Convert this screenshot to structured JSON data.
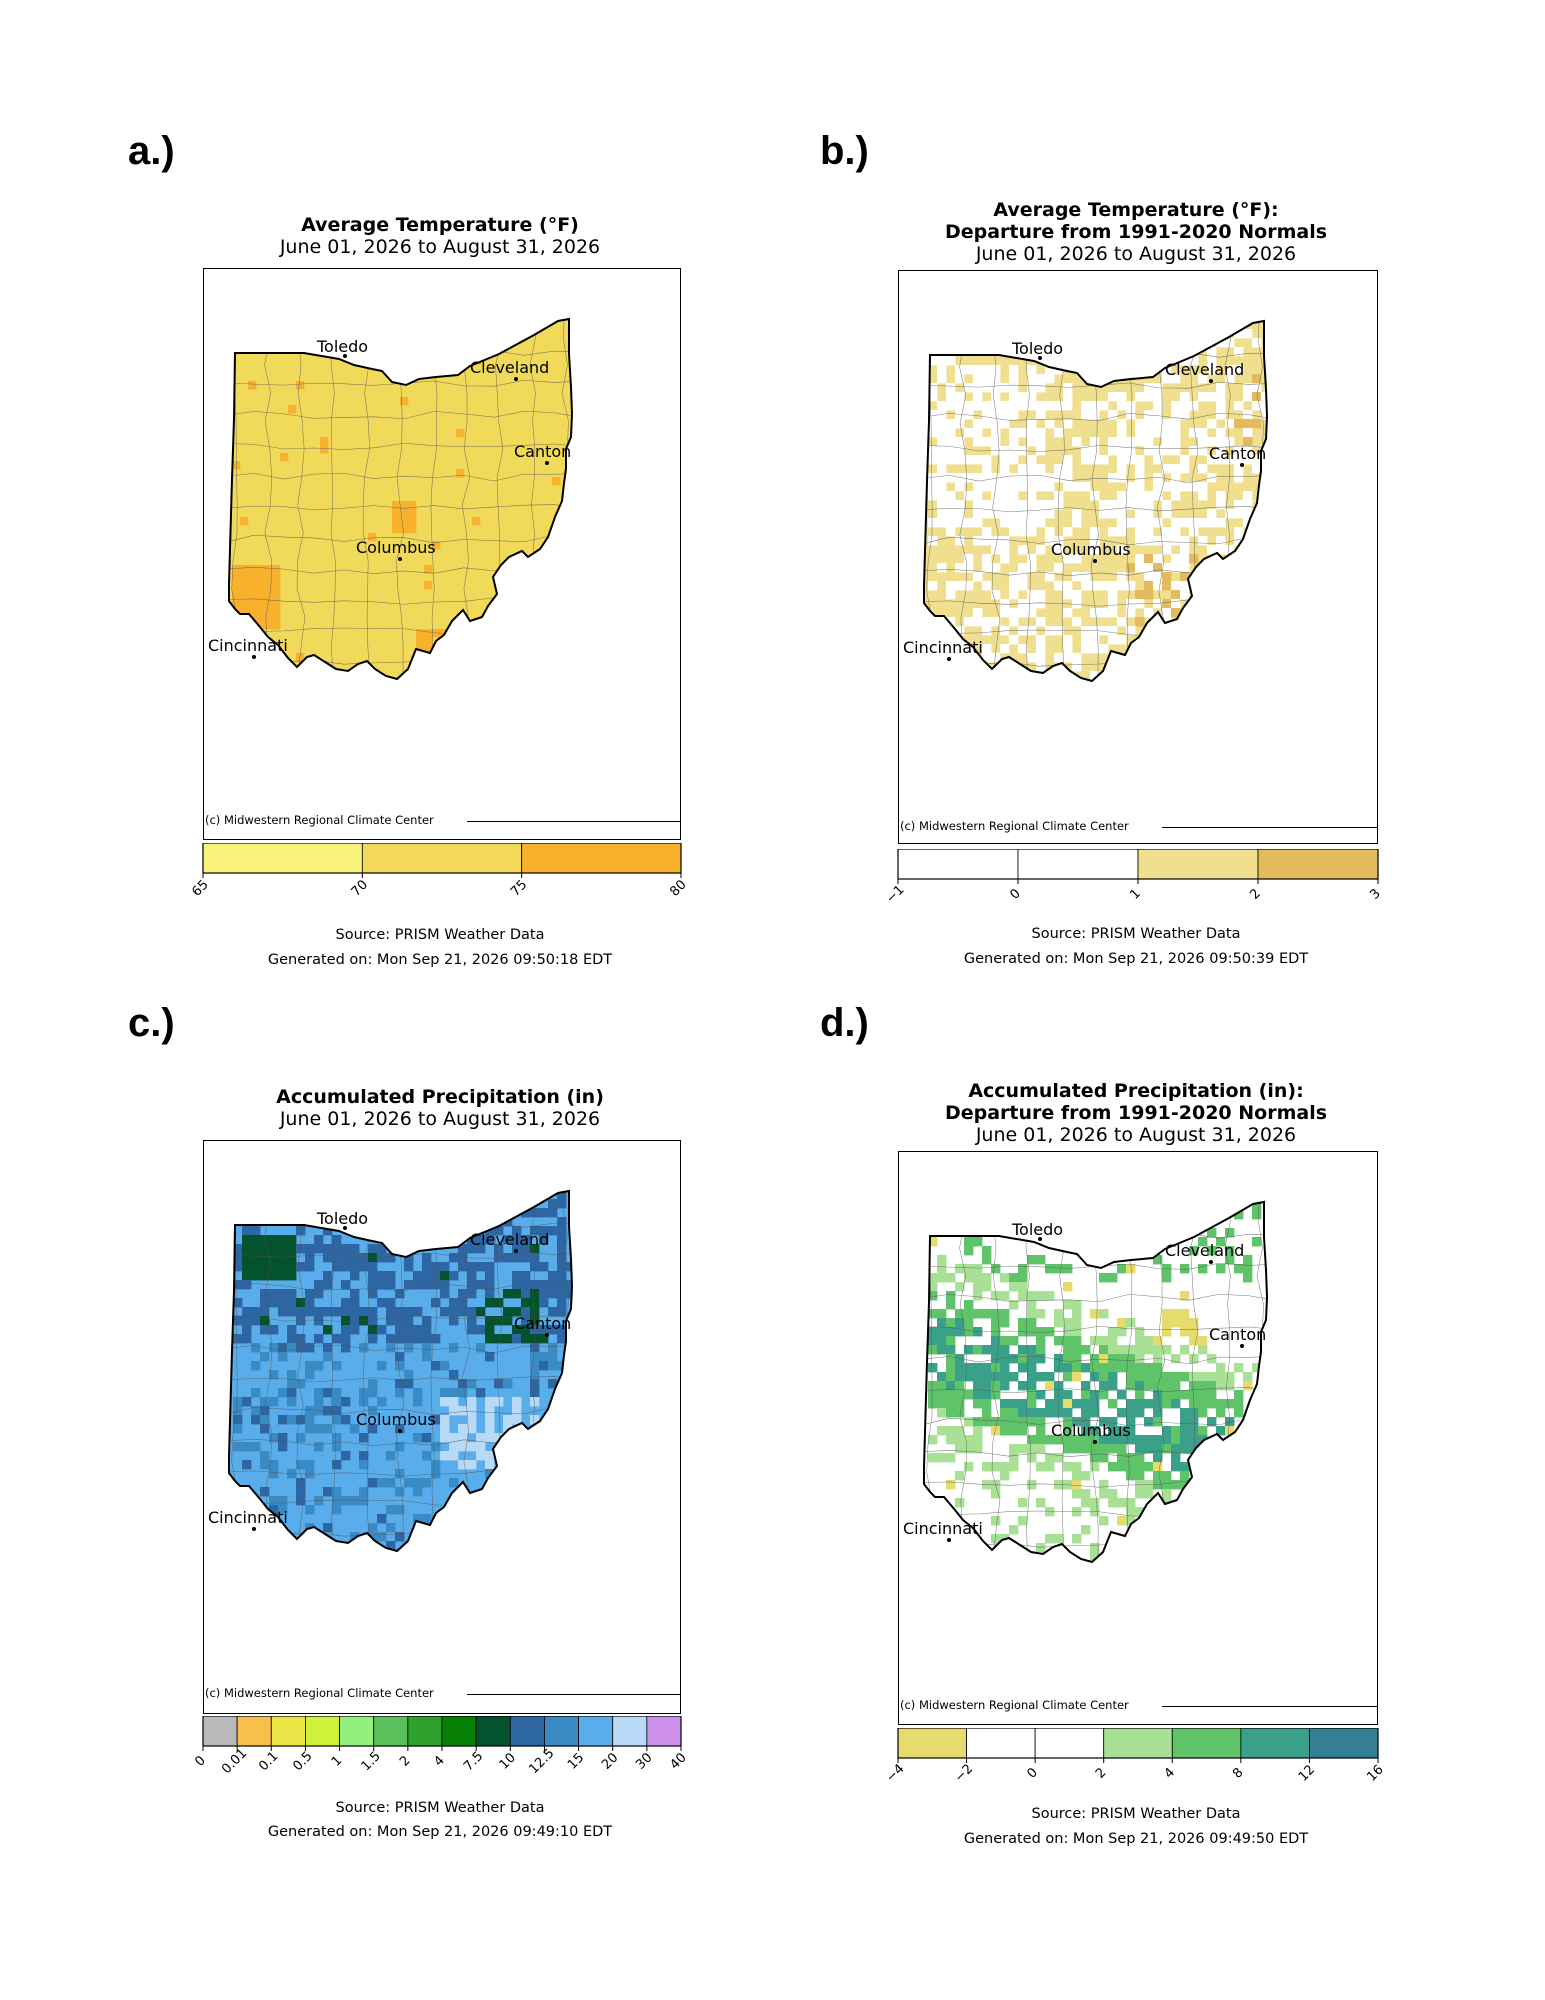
{
  "panels": [
    {
      "letter": "a.)",
      "title_lines": [
        "Average Temperature (°F)"
      ],
      "date_range": "June 01, 2026 to August 31, 2026",
      "credit": "(c) Midwestern Regional Climate Center",
      "source": "Source: PRISM Weather Data",
      "generated": "Generated on: Mon Sep 21, 2026 09:50:18 EDT",
      "base_color": "#f1d95a",
      "legend": {
        "ticks": [
          "65",
          "70",
          "75",
          "80"
        ],
        "bins": [
          "#f8f37a",
          "#f2d95a",
          "#f7b12d"
        ]
      },
      "cities": [
        "Toledo",
        "Cleveland",
        "Canton",
        "Columbus",
        "Cincinnati"
      ]
    },
    {
      "letter": "b.)",
      "title_lines": [
        "Average Temperature (°F):",
        "Departure from 1991-2020 Normals"
      ],
      "date_range": "June 01, 2026 to August 31, 2026",
      "credit": "(c) Midwestern Regional Climate Center",
      "source": "Source: PRISM Weather Data",
      "generated": "Generated on: Mon Sep 21, 2026 09:50:39 EDT",
      "base_color": "#efdf8e",
      "legend": {
        "ticks": [
          "−1",
          "0",
          "1",
          "2",
          "3"
        ],
        "bins": [
          "#ffffff",
          "#ffffff",
          "#efdf8e",
          "#e3bb5e"
        ]
      },
      "cities": [
        "Toledo",
        "Cleveland",
        "Canton",
        "Columbus",
        "Cincinnati"
      ]
    },
    {
      "letter": "c.)",
      "title_lines": [
        "Accumulated Precipitation (in)"
      ],
      "date_range": "June 01, 2026 to August 31, 2026",
      "credit": "(c) Midwestern Regional Climate Center",
      "source": "Source: PRISM Weather Data",
      "generated": "Generated on: Mon Sep 21, 2026 09:49:10 EDT",
      "base_color": "#5aadeb",
      "legend": {
        "ticks": [
          "0",
          "0.01",
          "0.1",
          "0.5",
          "1",
          "1.5",
          "2",
          "4",
          "7.5",
          "10",
          "12.5",
          "15",
          "20",
          "30",
          "40"
        ],
        "bins": [
          "#b9b9b9",
          "#f7c04a",
          "#ede447",
          "#cef23a",
          "#93f07e",
          "#5bbf5b",
          "#2ea02c",
          "#068106",
          "#04522e",
          "#2e65a3",
          "#3a8ac4",
          "#5aadeb",
          "#b8daf6",
          "#cc90e8"
        ]
      },
      "cities": [
        "Toledo",
        "Cleveland",
        "Canton",
        "Columbus",
        "Cincinnati"
      ]
    },
    {
      "letter": "d.)",
      "title_lines": [
        "Accumulated Precipitation (in):",
        "Departure from 1991-2020 Normals"
      ],
      "date_range": "June 01, 2026 to August 31, 2026",
      "credit": "(c) Midwestern Regional Climate Center",
      "source": "Source: PRISM Weather Data",
      "generated": "Generated on: Mon Sep 21, 2026 09:49:50 EDT",
      "base_color": "#ffffff",
      "legend": {
        "ticks": [
          "−4",
          "−2",
          "0",
          "2",
          "4",
          "8",
          "12",
          "16"
        ],
        "bins": [
          "#e6dc6e",
          "#ffffff",
          "#ffffff",
          "#a8e096",
          "#5fc36a",
          "#3aa08a",
          "#357f95"
        ]
      },
      "cities": [
        "Toledo",
        "Cleveland",
        "Canton",
        "Columbus",
        "Cincinnati"
      ]
    }
  ]
}
